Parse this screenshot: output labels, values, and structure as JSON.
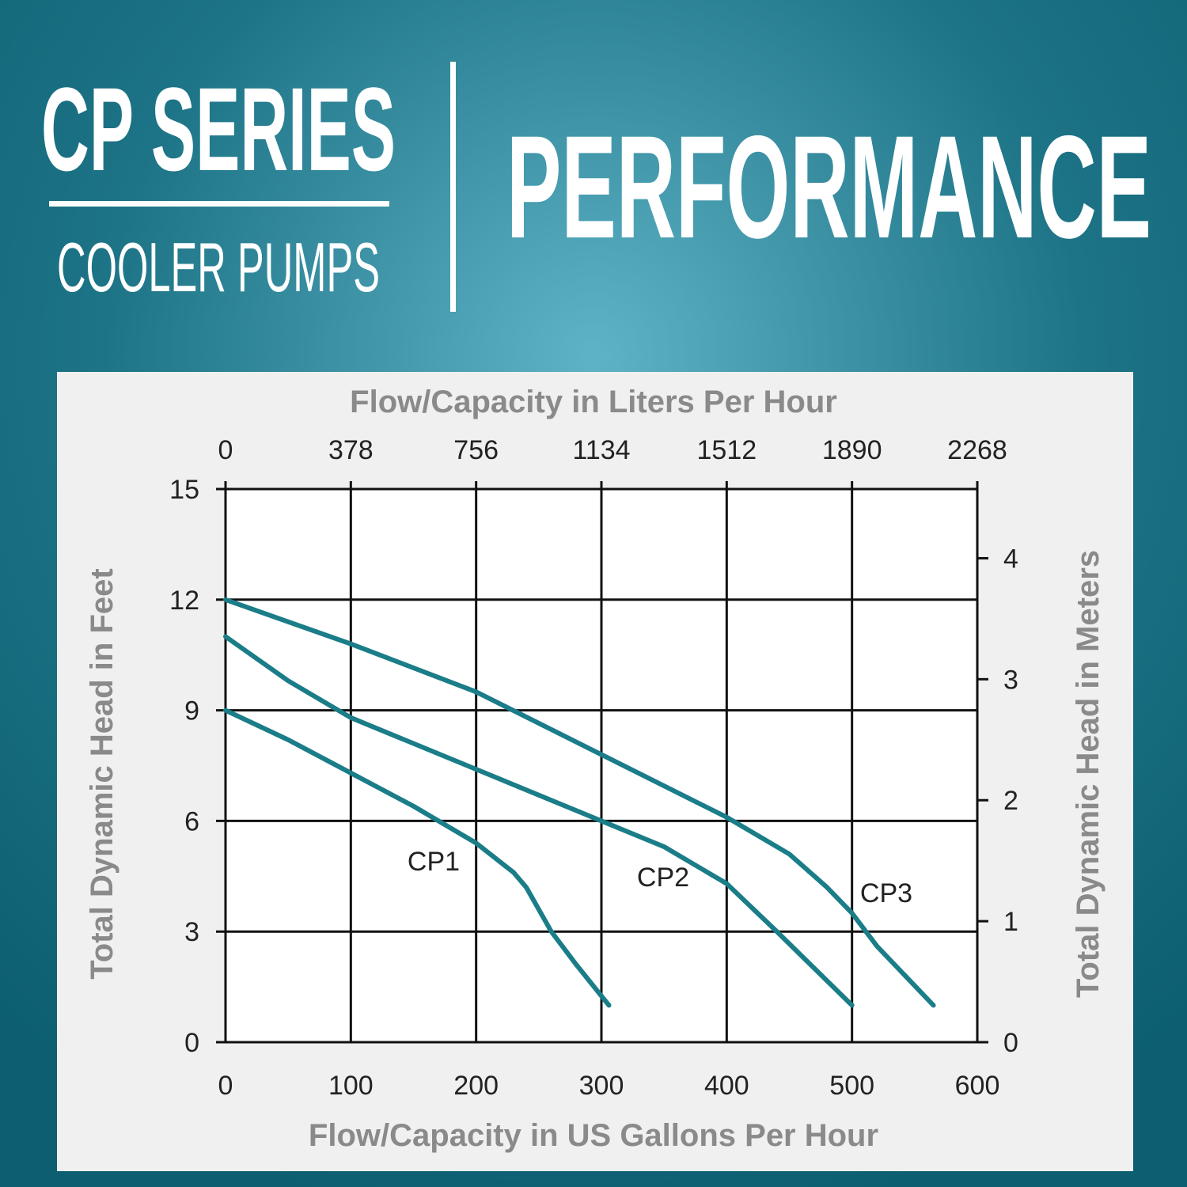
{
  "header": {
    "series": "CP SERIES",
    "subtitle": "COOLER PUMPS",
    "title": "PERFORMANCE"
  },
  "chart_data": {
    "type": "line",
    "xlabel": "Flow/Capacity in US Gallons Per Hour",
    "x2label": "Flow/Capacity in Liters Per Hour",
    "ylabel": "Total Dynamic Head in Feet",
    "y2label": "Total Dynamic Head in Meters",
    "xlim": [
      0,
      600
    ],
    "xticks": [
      0,
      100,
      200,
      300,
      400,
      500,
      600
    ],
    "x2lim": [
      0,
      2268
    ],
    "x2ticks": [
      0,
      378,
      756,
      1134,
      1512,
      1890,
      2268
    ],
    "ylim": [
      0,
      15
    ],
    "yticks": [
      0,
      3,
      6,
      9,
      12,
      15
    ],
    "y2lim": [
      0,
      4.572
    ],
    "y2ticks": [
      0,
      1,
      2,
      3,
      4
    ],
    "grid": true,
    "series": [
      {
        "name": "CP1",
        "color": "#1a7d88",
        "x": [
          0,
          50,
          100,
          150,
          200,
          230,
          240,
          260,
          280,
          306
        ],
        "values": [
          9,
          8.2,
          7.3,
          6.4,
          5.4,
          4.6,
          4.2,
          3.0,
          2.1,
          1
        ]
      },
      {
        "name": "CP2",
        "color": "#1a7d88",
        "x": [
          0,
          50,
          100,
          200,
          300,
          350,
          400,
          440,
          500
        ],
        "values": [
          11,
          9.8,
          8.8,
          7.4,
          6.0,
          5.3,
          4.3,
          3.0,
          1
        ]
      },
      {
        "name": "CP3",
        "color": "#1a7d88",
        "x": [
          0,
          100,
          200,
          300,
          400,
          450,
          480,
          500,
          520,
          565
        ],
        "values": [
          12,
          10.8,
          9.5,
          7.8,
          6.1,
          5.1,
          4.2,
          3.5,
          2.6,
          1
        ]
      }
    ]
  }
}
